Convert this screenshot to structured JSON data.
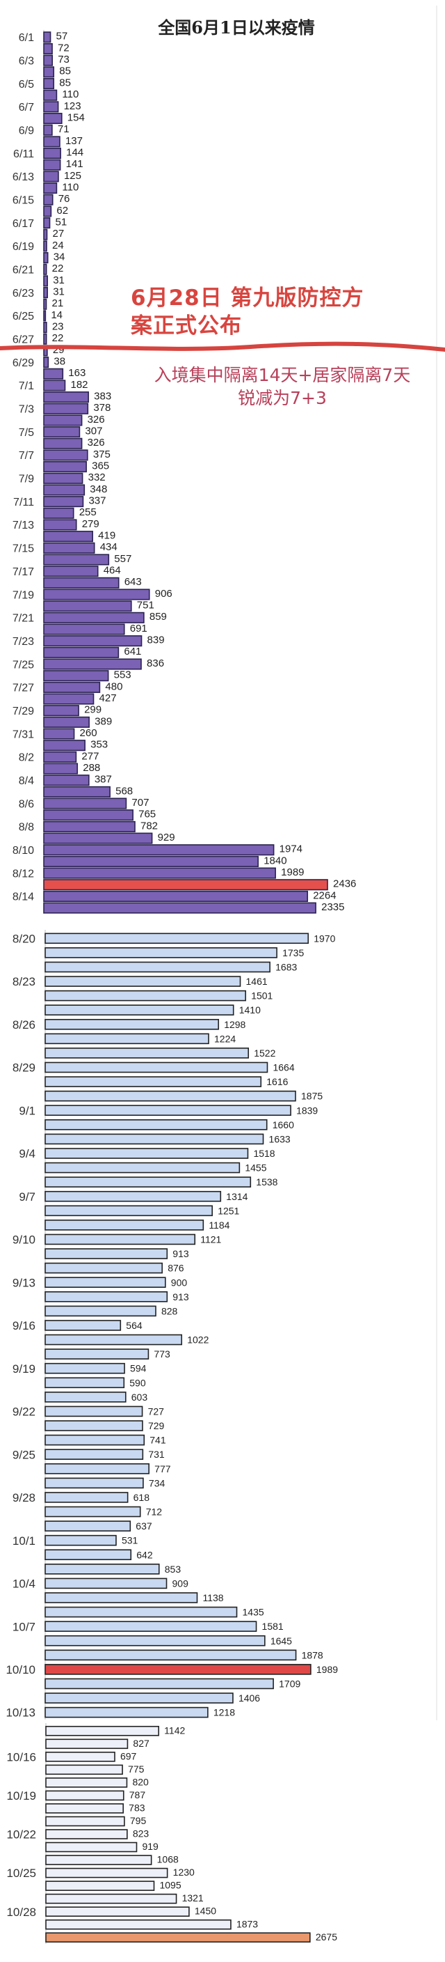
{
  "chart_data": {
    "type": "bar",
    "orientation": "horizontal",
    "title": "全国6月1日以来疫情",
    "annotations": [
      {
        "text_line1": "6月28日 第九版防控方案正式公布",
        "line1": "6月28日 第九版防控方",
        "line2": "案正式公布",
        "color": "#d8453f"
      },
      {
        "line1": "入境集中隔离14天+居家隔离7天",
        "line2": "锐减为7+3",
        "color": "#b8405a"
      }
    ],
    "segments": [
      {
        "bar_color": "#7b62b4",
        "border_color": "#2b2350",
        "highlight": {
          "index": 73,
          "color": "#e5504c"
        },
        "categories": [
          "6/1",
          "",
          "6/3",
          "",
          "6/5",
          "",
          "6/7",
          "",
          "6/9",
          "",
          "6/11",
          "",
          "6/13",
          "",
          "6/15",
          "",
          "6/17",
          "",
          "6/19",
          "",
          "6/21",
          "",
          "6/23",
          "",
          "6/25",
          "",
          "6/27",
          "",
          "6/29",
          "",
          "7/1",
          "",
          "7/3",
          "",
          "7/5",
          "",
          "7/7",
          "",
          "7/9",
          "",
          "7/11",
          "",
          "7/13",
          "",
          "7/15",
          "",
          "7/17",
          "",
          "7/19",
          "",
          "7/21",
          "",
          "7/23",
          "",
          "7/25",
          "",
          "7/27",
          "",
          "7/29",
          "",
          "7/31",
          "",
          "8/2",
          "",
          "8/4",
          "",
          "8/6",
          "",
          "8/8",
          "",
          "8/10",
          "",
          "8/12",
          "",
          "8/14",
          ""
        ],
        "values": [
          57,
          72,
          73,
          85,
          85,
          110,
          123,
          154,
          71,
          137,
          144,
          141,
          125,
          110,
          76,
          62,
          51,
          27,
          24,
          34,
          22,
          31,
          31,
          21,
          14,
          23,
          22,
          29,
          38,
          163,
          182,
          383,
          378,
          326,
          307,
          326,
          375,
          365,
          332,
          348,
          337,
          255,
          279,
          419,
          434,
          557,
          464,
          643,
          906,
          751,
          859,
          691,
          839,
          641,
          836,
          553,
          480,
          427,
          299,
          389,
          260,
          353,
          277,
          288,
          387,
          568,
          707,
          765,
          782,
          929,
          1974,
          1840,
          1989,
          2436,
          2264,
          2335
        ]
      },
      {
        "bar_color": "#c9d9f1",
        "border_color": "#222222",
        "highlight": {
          "index": 51,
          "color": "#e04848"
        },
        "categories": [
          "8/20",
          "",
          "",
          "8/23",
          "",
          "",
          "8/26",
          "",
          "",
          "8/29",
          "",
          "",
          "9/1",
          "",
          "",
          "9/4",
          "",
          "",
          "9/7",
          "",
          "",
          "9/10",
          "",
          "",
          "9/13",
          "",
          "",
          "9/16",
          "",
          "",
          "9/19",
          "",
          "",
          "9/22",
          "",
          "",
          "9/25",
          "",
          "",
          "9/28",
          "",
          "",
          "10/1",
          "",
          "",
          "10/4",
          "",
          "",
          "10/7",
          "",
          "",
          "10/10",
          "",
          "",
          "10/13"
        ],
        "values": [
          1970,
          1735,
          1683,
          1461,
          1501,
          1410,
          1298,
          1224,
          1522,
          1664,
          1616,
          1875,
          1839,
          1660,
          1633,
          1518,
          1455,
          1538,
          1314,
          1251,
          1184,
          1121,
          913,
          876,
          900,
          913,
          828,
          564,
          1022,
          773,
          594,
          590,
          603,
          727,
          729,
          741,
          731,
          777,
          734,
          618,
          712,
          637,
          531,
          642,
          853,
          909,
          1138,
          1435,
          1581,
          1645,
          1878,
          1989,
          1709,
          1406,
          1218
        ]
      },
      {
        "bar_color": "#eef0f9",
        "border_color": "#222222",
        "highlight": {
          "index": 16,
          "color": "#e9976c"
        },
        "categories": [
          "",
          "",
          "10/16",
          "",
          "",
          "10/19",
          "",
          "",
          "10/22",
          "",
          "",
          "10/25",
          "",
          "",
          "10/28",
          "",
          ""
        ],
        "values": [
          1142,
          827,
          697,
          775,
          820,
          787,
          783,
          795,
          823,
          919,
          1068,
          1230,
          1095,
          1321,
          1450,
          1873,
          2675
        ]
      }
    ],
    "xlabel": "",
    "ylabel": "",
    "grid": false,
    "legend": "none"
  }
}
